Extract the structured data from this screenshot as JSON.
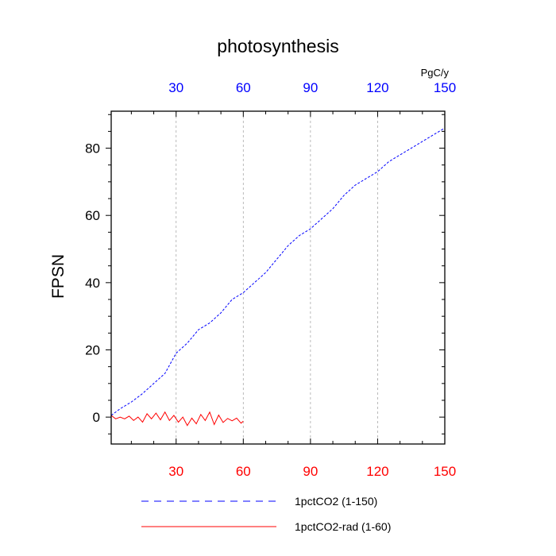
{
  "chart_data": {
    "type": "line",
    "title": "photosynthesis",
    "ylabel": "FPSN",
    "xlabel": "",
    "top_axis_unit": "PgC/y",
    "xlim": [
      1,
      150
    ],
    "ylim": [
      -8,
      91
    ],
    "x_ticks": [
      30,
      60,
      90,
      120,
      150
    ],
    "y_ticks": [
      0,
      20,
      40,
      60,
      80
    ],
    "grid": "vertical dashed at x ticks",
    "colors": {
      "top_axis": "#0000ff",
      "bottom_axis": "#ff0000",
      "series_1": "#0000ff",
      "series_2": "#ff0000"
    },
    "legend_position": "bottom",
    "series": [
      {
        "name": "1pctCO2 (1-150)",
        "style": "dashed",
        "x": [
          1,
          5,
          10,
          15,
          20,
          25,
          30,
          35,
          40,
          45,
          50,
          55,
          60,
          65,
          70,
          75,
          80,
          85,
          90,
          95,
          100,
          105,
          110,
          115,
          120,
          125,
          130,
          135,
          140,
          145,
          150
        ],
        "y": [
          0.5,
          2.5,
          4.5,
          7,
          10,
          13,
          19,
          22,
          26,
          28,
          31,
          35,
          37,
          40,
          43,
          47,
          51,
          54,
          56,
          59,
          62,
          66,
          69,
          71,
          73,
          76,
          78,
          80,
          82,
          84,
          86
        ]
      },
      {
        "name": "1pctCO2-rad (1-60)",
        "style": "solid",
        "x": [
          1,
          3,
          5,
          7,
          9,
          11,
          13,
          15,
          17,
          19,
          21,
          23,
          25,
          27,
          29,
          31,
          33,
          35,
          37,
          39,
          41,
          43,
          45,
          47,
          49,
          51,
          53,
          55,
          57,
          59,
          60
        ],
        "y": [
          0.5,
          -0.5,
          0,
          -0.5,
          0.3,
          -1,
          0,
          -1.5,
          1,
          -0.5,
          1.2,
          -0.8,
          1.5,
          -1,
          0.5,
          -1.5,
          0,
          -2.5,
          -0.3,
          -2,
          0.8,
          -1,
          1.5,
          -2.2,
          0.6,
          -1.6,
          -0.4,
          -1.1,
          -0.3,
          -1.8,
          -1.2
        ]
      }
    ]
  }
}
